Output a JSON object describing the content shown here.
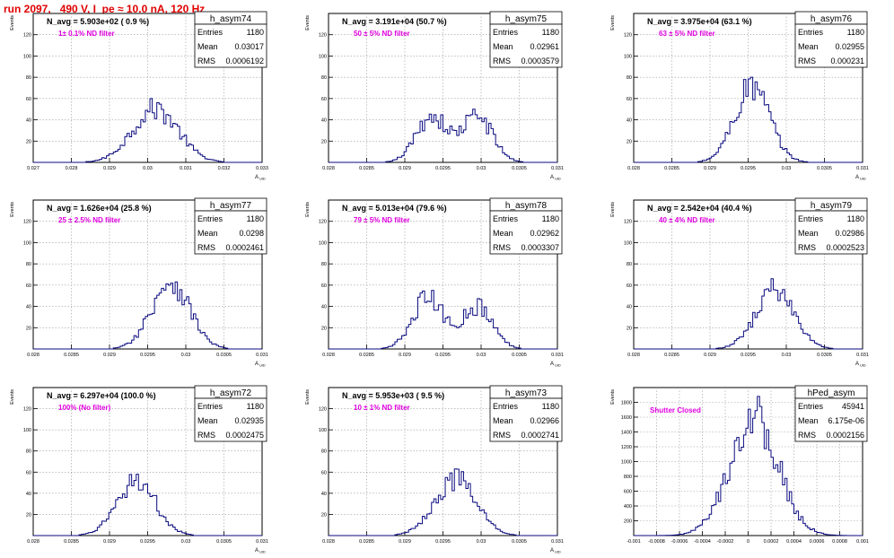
{
  "title": "run 2097,   490 V, I_pe ≈ 10.0 nA, 120 Hz",
  "colors": {
    "title": "#e00000",
    "hist": "#0a0a80",
    "note": "#e000e0",
    "grid": "#9a9a9a",
    "axis": "#000000"
  },
  "chart_data": [
    {
      "type": "histogram",
      "name": "h_asym74",
      "navg_label": "N_avg = 5.903e+02 ( 0.9 %)",
      "note": "1± 0.1% ND filter",
      "stats": {
        "entries": "1180",
        "mean": "0.03017",
        "rms": "0.0006192"
      },
      "stat_labels": [
        "Entries",
        "Mean",
        "RMS"
      ],
      "xlim": [
        0.027,
        0.033
      ],
      "ylim": [
        0,
        140
      ],
      "xticks": [
        0.027,
        0.028,
        0.029,
        0.03,
        0.031,
        0.032,
        0.033
      ],
      "xticklabels": [
        "0.027",
        "0.028",
        "0.029",
        "0.03",
        "0.031",
        "0.032",
        "0.033"
      ],
      "yticks": [
        20,
        40,
        60,
        80,
        100,
        120
      ],
      "ylabel": "Events",
      "xlabel": "A_UID",
      "peaks": [
        {
          "mean": 0.0302,
          "sigma": 0.0006,
          "height": 50
        }
      ],
      "peak_y": 60
    },
    {
      "type": "histogram",
      "name": "h_asym75",
      "navg_label": "N_avg = 3.191e+04 (50.7 %)",
      "note": "50 ± 5% ND filter",
      "stats": {
        "entries": "1180",
        "mean": "0.02961",
        "rms": "0.0003579"
      },
      "stat_labels": [
        "Entries",
        "Mean",
        "RMS"
      ],
      "xlim": [
        0.028,
        0.031
      ],
      "ylim": [
        0,
        140
      ],
      "xticks": [
        0.028,
        0.0285,
        0.029,
        0.0295,
        0.03,
        0.0305,
        0.031
      ],
      "xticklabels": [
        "0.028",
        "0.0285",
        "0.029",
        "0.0295",
        "0.03",
        "0.0305",
        "0.031"
      ],
      "yticks": [
        20,
        40,
        60,
        80,
        100,
        120
      ],
      "ylabel": "Events",
      "xlabel": "A_UID",
      "peaks": [
        {
          "mean": 0.02935,
          "sigma": 0.0002,
          "height": 42
        },
        {
          "mean": 0.02995,
          "sigma": 0.0002,
          "height": 42
        }
      ],
      "peak_y": 50
    },
    {
      "type": "histogram",
      "name": "h_asym76",
      "navg_label": "N_avg = 3.975e+04 (63.1 %)",
      "note": "63 ± 5% ND filter",
      "stats": {
        "entries": "1180",
        "mean": "0.02955",
        "rms": "0.000231"
      },
      "stat_labels": [
        "Entries",
        "Mean",
        "RMS"
      ],
      "xlim": [
        0.028,
        0.031
      ],
      "ylim": [
        0,
        140
      ],
      "xticks": [
        0.028,
        0.0285,
        0.029,
        0.0295,
        0.03,
        0.0305,
        0.031
      ],
      "xticklabels": [
        "0.028",
        "0.0285",
        "0.029",
        "0.0295",
        "0.03",
        "0.0305",
        "0.031"
      ],
      "yticks": [
        20,
        40,
        60,
        80,
        100,
        120
      ],
      "ylabel": "Events",
      "xlabel": "A_UID",
      "peaks": [
        {
          "mean": 0.02955,
          "sigma": 0.00023,
          "height": 70
        }
      ],
      "peak_y": 80
    },
    {
      "type": "histogram",
      "name": "h_asym77",
      "navg_label": "N_avg = 1.626e+04 (25.8 %)",
      "note": "25 ± 2.5% ND filter",
      "stats": {
        "entries": "1180",
        "mean": "0.0298",
        "rms": "0.0002461"
      },
      "stat_labels": [
        "Entries",
        "Mean",
        "RMS"
      ],
      "xlim": [
        0.028,
        0.031
      ],
      "ylim": [
        0,
        140
      ],
      "xticks": [
        0.028,
        0.0285,
        0.029,
        0.0295,
        0.03,
        0.0305,
        0.031
      ],
      "xticklabels": [
        "0.028",
        "0.0285",
        "0.029",
        "0.0295",
        "0.03",
        "0.0305",
        "0.031"
      ],
      "yticks": [
        20,
        40,
        60,
        80,
        100,
        120
      ],
      "ylabel": "Events",
      "xlabel": "A_UID",
      "peaks": [
        {
          "mean": 0.0298,
          "sigma": 0.00025,
          "height": 56
        }
      ],
      "peak_y": 63
    },
    {
      "type": "histogram",
      "name": "h_asym78",
      "navg_label": "N_avg = 5.013e+04 (79.6 %)",
      "note": "79 ± 5% ND filter",
      "stats": {
        "entries": "1180",
        "mean": "0.02962",
        "rms": "0.0003307"
      },
      "stat_labels": [
        "Entries",
        "Mean",
        "RMS"
      ],
      "xlim": [
        0.028,
        0.031
      ],
      "ylim": [
        0,
        140
      ],
      "xticks": [
        0.028,
        0.0285,
        0.029,
        0.0295,
        0.03,
        0.0305,
        0.031
      ],
      "xticklabels": [
        "0.028",
        "0.0285",
        "0.029",
        "0.0295",
        "0.03",
        "0.0305",
        "0.031"
      ],
      "yticks": [
        20,
        40,
        60,
        80,
        100,
        120
      ],
      "ylabel": "Events",
      "xlabel": "A_UID",
      "peaks": [
        {
          "mean": 0.0293,
          "sigma": 0.0002,
          "height": 46
        },
        {
          "mean": 0.02995,
          "sigma": 0.0002,
          "height": 38
        }
      ],
      "peak_y": 55
    },
    {
      "type": "histogram",
      "name": "h_asym79",
      "navg_label": "N_avg = 2.542e+04 (40.4 %)",
      "note": "40 ± 4% ND filter",
      "stats": {
        "entries": "1180",
        "mean": "0.02986",
        "rms": "0.0002523"
      },
      "stat_labels": [
        "Entries",
        "Mean",
        "RMS"
      ],
      "xlim": [
        0.028,
        0.031
      ],
      "ylim": [
        0,
        140
      ],
      "xticks": [
        0.028,
        0.0285,
        0.029,
        0.0295,
        0.03,
        0.0305,
        0.031
      ],
      "xticklabels": [
        "0.028",
        "0.0285",
        "0.029",
        "0.0295",
        "0.03",
        "0.0305",
        "0.031"
      ],
      "yticks": [
        20,
        40,
        60,
        80,
        100,
        120
      ],
      "ylabel": "Events",
      "xlabel": "A_UID",
      "peaks": [
        {
          "mean": 0.02985,
          "sigma": 0.00025,
          "height": 55
        }
      ],
      "peak_y": 66
    },
    {
      "type": "histogram",
      "name": "h_asym72",
      "navg_label": "N_avg = 6.297e+04 (100.0 %)",
      "note": "100% (No filter)",
      "stats": {
        "entries": "1180",
        "mean": "0.02935",
        "rms": "0.0002475"
      },
      "stat_labels": [
        "Entries",
        "Mean",
        "RMS"
      ],
      "xlim": [
        0.028,
        0.031
      ],
      "ylim": [
        0,
        140
      ],
      "xticks": [
        0.028,
        0.0285,
        0.029,
        0.0295,
        0.03,
        0.0305,
        0.031
      ],
      "xticklabels": [
        "0.028",
        "0.0285",
        "0.029",
        "0.0295",
        "0.03",
        "0.0305",
        "0.031"
      ],
      "yticks": [
        20,
        40,
        60,
        80,
        100,
        120
      ],
      "ylabel": "Events",
      "xlabel": "A_UID",
      "peaks": [
        {
          "mean": 0.02935,
          "sigma": 0.00025,
          "height": 52
        }
      ],
      "peak_y": 58
    },
    {
      "type": "histogram",
      "name": "h_asym73",
      "navg_label": "N_avg = 5.953e+03 ( 9.5 %)",
      "note": "10 ± 1% ND filter",
      "stats": {
        "entries": "1180",
        "mean": "0.02966",
        "rms": "0.0002741"
      },
      "stat_labels": [
        "Entries",
        "Mean",
        "RMS"
      ],
      "xlim": [
        0.028,
        0.031
      ],
      "ylim": [
        0,
        140
      ],
      "xticks": [
        0.028,
        0.0285,
        0.029,
        0.0295,
        0.03,
        0.0305,
        0.031
      ],
      "xticklabels": [
        "0.028",
        "0.0285",
        "0.029",
        "0.0295",
        "0.03",
        "0.0305",
        "0.031"
      ],
      "yticks": [
        20,
        40,
        60,
        80,
        100,
        120
      ],
      "ylabel": "Events",
      "xlabel": "A_UID",
      "peaks": [
        {
          "mean": 0.02966,
          "sigma": 0.00027,
          "height": 52
        }
      ],
      "peak_y": 63
    },
    {
      "type": "histogram",
      "name": "hPed_asym",
      "navg_label": "",
      "note": "Shutter Closed",
      "stats": {
        "entries": "45941",
        "mean": "6.175e-06",
        "rms": "0.0002156"
      },
      "stat_labels": [
        "Entries",
        "Mean",
        "RMS"
      ],
      "xlim": [
        -0.001,
        0.001
      ],
      "ylim": [
        0,
        2000
      ],
      "xticks": [
        -0.001,
        -0.0008,
        -0.0006,
        -0.0004,
        -0.0002,
        0,
        0.0002,
        0.0004,
        0.0006,
        0.0008,
        0.001
      ],
      "xticklabels": [
        "-0.001",
        "-0.0008",
        "-0.0006",
        "-0.0004",
        "-0.0002",
        "0",
        "0.0002",
        "0.0004",
        "0.0006",
        "0.0008",
        "0.001"
      ],
      "yticks": [
        200,
        400,
        600,
        800,
        1000,
        1200,
        1400,
        1600,
        1800
      ],
      "ylabel": "Events",
      "xlabel": "",
      "peaks": [
        {
          "mean": 5e-05,
          "sigma": 0.00021,
          "height": 1850
        }
      ],
      "peak_y": 1880
    }
  ]
}
